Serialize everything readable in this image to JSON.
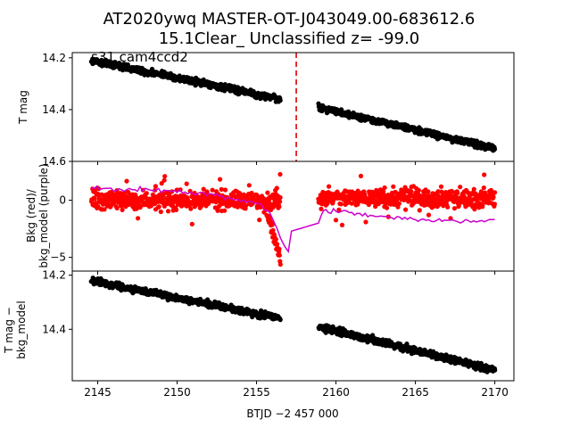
{
  "figure": {
    "title_line1": "AT2020ywq  MASTER-OT-J043049.00-683612.6",
    "title_line2": "15.1Clear_ Unclassified z= -99.0"
  },
  "chart_data": [
    {
      "type": "scatter",
      "panel": "top",
      "ylabel": "T mag",
      "y_inverted": true,
      "xlim": [
        2143.4,
        2171.2
      ],
      "ylim": [
        14.6,
        14.18
      ],
      "yticks": [
        14.2,
        14.4,
        14.6
      ],
      "ytick_labels": [
        "14.2",
        "14.4",
        "14.6"
      ],
      "annotation": "s31 cam4ccd2",
      "vline": {
        "x": 2157.5,
        "color": "#dd0000",
        "style": "dashed"
      },
      "series": [
        {
          "color": "#000000",
          "segments": [
            {
              "x_start": 2144.6,
              "x_end": 2156.5,
              "y_start": 14.21,
              "y_end": 14.36,
              "scatter": 0.018
            },
            {
              "x_start": 2158.9,
              "x_end": 2170.0,
              "y_start": 14.39,
              "y_end": 14.55,
              "scatter": 0.018
            }
          ]
        }
      ]
    },
    {
      "type": "scatter",
      "panel": "middle",
      "ylabel_line1": "Bkg (red)/",
      "ylabel_line2": "bkg_model (purple)",
      "xlim": [
        2143.4,
        2171.2
      ],
      "ylim": [
        -6.2,
        3.4
      ],
      "yticks": [
        -5,
        0
      ],
      "ytick_labels": [
        "−5",
        "0"
      ],
      "series": [
        {
          "name": "Bkg",
          "color": "#ff0000",
          "segments": [
            {
              "x_start": 2144.6,
              "x_end": 2156.5,
              "y_mean": 0.0,
              "scatter": 1.2
            },
            {
              "x_start": 2158.9,
              "x_end": 2170.0,
              "y_mean": 0.2,
              "scatter": 1.2
            }
          ],
          "dip": {
            "x_start": 2155.6,
            "x_end": 2156.5,
            "y_min": -5.3
          }
        },
        {
          "name": "bkg_model",
          "color": "#cc00cc",
          "line_points": [
            [
              2144.6,
              1.1
            ],
            [
              2146.0,
              0.9
            ],
            [
              2148.0,
              1.0
            ],
            [
              2150.0,
              0.8
            ],
            [
              2152.0,
              0.5
            ],
            [
              2154.0,
              0.0
            ],
            [
              2155.0,
              -0.3
            ],
            [
              2155.8,
              -1.0
            ],
            [
              2156.3,
              -2.5
            ],
            [
              2156.5,
              -3.3
            ],
            [
              2156.8,
              -4.1
            ],
            [
              2157.0,
              -4.5
            ],
            [
              2157.2,
              -2.7
            ],
            [
              2158.9,
              -2.0
            ],
            [
              2159.2,
              -0.8
            ],
            [
              2160.0,
              -1.0
            ],
            [
              2162.0,
              -1.3
            ],
            [
              2164.0,
              -1.6
            ],
            [
              2166.0,
              -1.8
            ],
            [
              2168.0,
              -1.8
            ],
            [
              2170.0,
              -1.7
            ]
          ]
        }
      ]
    },
    {
      "type": "scatter",
      "panel": "bottom",
      "ylabel_line1": "T mag −",
      "ylabel_line2": "bkg_model",
      "y_inverted": true,
      "xlim": [
        2143.4,
        2171.2
      ],
      "ylim": [
        14.59,
        14.185
      ],
      "yticks": [
        14.2,
        14.4
      ],
      "ytick_labels": [
        "14.2",
        "14.4"
      ],
      "xlabel": "BTJD −2 457 000",
      "xticks": [
        2145,
        2150,
        2155,
        2160,
        2165,
        2170
      ],
      "xtick_labels": [
        "2145",
        "2150",
        "2155",
        "2160",
        "2165",
        "2170"
      ],
      "series": [
        {
          "color": "#000000",
          "segments": [
            {
              "x_start": 2144.6,
              "x_end": 2156.5,
              "y_start": 14.22,
              "y_end": 14.36,
              "scatter": 0.018
            },
            {
              "x_start": 2158.9,
              "x_end": 2170.0,
              "y_start": 14.39,
              "y_end": 14.55,
              "scatter": 0.018
            }
          ]
        }
      ]
    }
  ]
}
